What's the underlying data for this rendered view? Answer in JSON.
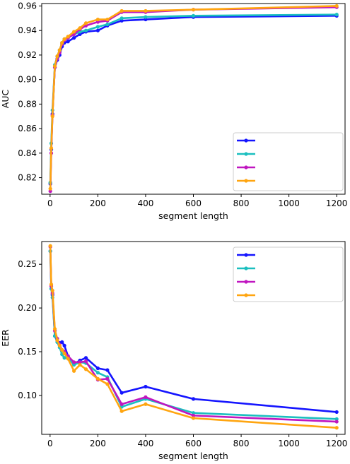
{
  "chart_data": [
    {
      "type": "line",
      "xlabel": "segment length",
      "ylabel": "AUC",
      "xlim": [
        -35,
        1235
      ],
      "ylim": [
        0.8065,
        0.962
      ],
      "xticks": [
        0,
        200,
        400,
        600,
        800,
        1000,
        1200
      ],
      "yticks": [
        0.82,
        0.84,
        0.86,
        0.88,
        0.9,
        0.92,
        0.94,
        0.96
      ],
      "ytick_labels": [
        "0.82",
        "0.84",
        "0.86",
        "0.88",
        "0.90",
        "0.92",
        "0.94",
        "0.96"
      ],
      "legend": "lower-right",
      "grid": false,
      "x": [
        1,
        5,
        10,
        20,
        30,
        40,
        50,
        60,
        75,
        100,
        125,
        150,
        200,
        240,
        300,
        400,
        600,
        1200
      ],
      "series": [
        {
          "color": "#1515ff",
          "values": [
            0.815,
            0.843,
            0.872,
            0.91,
            0.916,
            0.92,
            0.927,
            0.93,
            0.931,
            0.934,
            0.937,
            0.939,
            0.94,
            0.944,
            0.948,
            0.949,
            0.951,
            0.952
          ]
        },
        {
          "color": "#1bbfbf",
          "values": [
            0.816,
            0.848,
            0.875,
            0.912,
            0.919,
            0.924,
            0.93,
            0.933,
            0.934,
            0.937,
            0.939,
            0.94,
            0.943,
            0.945,
            0.95,
            0.951,
            0.952,
            0.953
          ]
        },
        {
          "color": "#c016c0",
          "values": [
            0.809,
            0.84,
            0.871,
            0.91,
            0.917,
            0.922,
            0.929,
            0.932,
            0.934,
            0.937,
            0.941,
            0.944,
            0.947,
            0.948,
            0.955,
            0.955,
            0.957,
            0.959
          ]
        },
        {
          "color": "#ffa510",
          "values": [
            0.811,
            0.844,
            0.87,
            0.911,
            0.919,
            0.924,
            0.93,
            0.933,
            0.935,
            0.939,
            0.942,
            0.946,
            0.949,
            0.949,
            0.956,
            0.956,
            0.957,
            0.96
          ]
        }
      ]
    },
    {
      "type": "line",
      "xlabel": "segment length",
      "ylabel": "EER",
      "xlim": [
        -35,
        1235
      ],
      "ylim": [
        0.0555,
        0.276
      ],
      "xticks": [
        0,
        200,
        400,
        600,
        800,
        1000,
        1200
      ],
      "yticks": [
        0.1,
        0.15,
        0.2,
        0.25
      ],
      "ytick_labels": [
        "0.10",
        "0.15",
        "0.20",
        "0.25"
      ],
      "legend": "upper-right",
      "grid": false,
      "x": [
        1,
        5,
        10,
        20,
        30,
        40,
        50,
        60,
        75,
        100,
        125,
        150,
        200,
        240,
        300,
        400,
        600,
        1200
      ],
      "series": [
        {
          "color": "#1515ff",
          "values": [
            0.265,
            0.222,
            0.215,
            0.168,
            0.163,
            0.16,
            0.161,
            0.157,
            0.145,
            0.136,
            0.14,
            0.143,
            0.131,
            0.129,
            0.103,
            0.11,
            0.096,
            0.081
          ]
        },
        {
          "color": "#1bbfbf",
          "values": [
            0.265,
            0.222,
            0.212,
            0.168,
            0.161,
            0.155,
            0.147,
            0.143,
            0.143,
            0.135,
            0.138,
            0.137,
            0.126,
            0.121,
            0.087,
            0.096,
            0.08,
            0.073
          ]
        },
        {
          "color": "#c016c0",
          "values": [
            0.27,
            0.225,
            0.217,
            0.174,
            0.165,
            0.158,
            0.152,
            0.15,
            0.145,
            0.138,
            0.138,
            0.139,
            0.118,
            0.119,
            0.09,
            0.098,
            0.077,
            0.07
          ]
        },
        {
          "color": "#ffa510",
          "values": [
            0.271,
            0.227,
            0.22,
            0.176,
            0.163,
            0.157,
            0.152,
            0.148,
            0.142,
            0.128,
            0.135,
            0.13,
            0.119,
            0.113,
            0.082,
            0.09,
            0.074,
            0.063
          ]
        }
      ]
    }
  ]
}
